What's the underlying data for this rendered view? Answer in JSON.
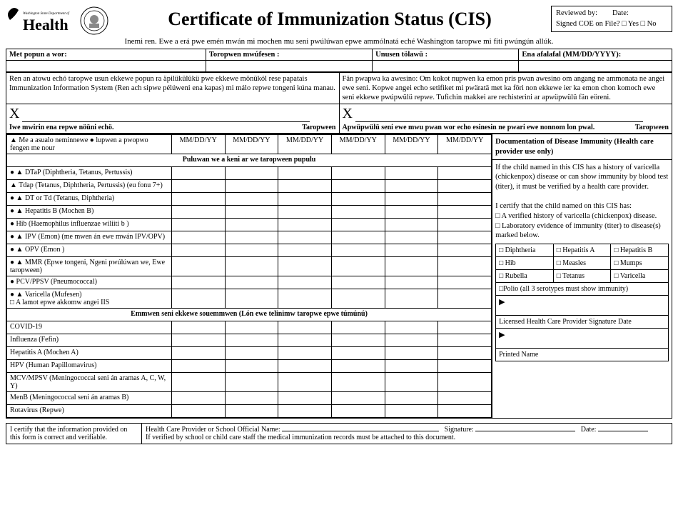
{
  "header": {
    "dept": "Washington State Department of",
    "health": "Health",
    "title": "Certificate of Immunization Status (CIS)",
    "review_l1a": "Reviewed by:",
    "review_l1b": "Date:",
    "review_l2": "Signed COE on File? □ Yes □ No",
    "sub": "Inemi ren. Ewe a erá pwe emén mwán mi mochen mu seni pwúlúwan epwe ammólnatá eché Washington taropwe mi fiti pwúngún allúk."
  },
  "info_headers": {
    "c1": "Met popun a wor:",
    "c2": "Toropwen mwúfesen :",
    "c3": "Unusen tölawü :",
    "c4": "Ena afalafal (MM/DD/YYYY):"
  },
  "para_left": "Ren an atowu echó taropwe usun ekkewe popun ra äpilükülükü pwe ekkewe mönükól rese papatais Immunization Information System (Ren ach sipwe pélúweni ena kapas) mi málo repwe tongeni kúna manau.",
  "para_right": "Fän pwapwa ka awesino: Om kokot nupwen ka emon pris pwan awesino om angang ne ammonata ne angei ewe seni. Kopwe angei echo setifiket mi pwäratä met ka föri non ekkewe ier ka emon chon komoch ewe seni ekkewe pwúpwülü repwe. Tufichin makkei are rechisterini ar apwüpwülü fän eöreni.",
  "sig": {
    "left_cap_a": "Iwe mwirin ena repwe nöüni echö.",
    "left_cap_b": "Taropween",
    "right_cap_a": "Apwüpwülü seni ewe mwu pwan wor echo esinesin ne pwari ewe nonnom lon pwal.",
    "right_cap_b": "Taropween"
  },
  "legend": "▲ Me a asualo neminnewe   ● lupwen a pwopwo fengen me nour",
  "date_hdr": "MM/DD/YY",
  "sect1": "Puluwan we a keni ar we taropween pupulu",
  "vaccines1": [
    "● ▲ DTaP (Diphtheria, Tetanus, Pertussis)",
    "▲ Tdap (Tetanus, Diphtheria, Pertussis) (eu fonu 7+)",
    "● ▲ DT or Td (Tetanus, Diphtheria)",
    "● ▲ Hepatitis B (Mochen B)",
    "●   Hib (Haemophilus influenzae wiliiti b )",
    "● ▲ IPV (Emon) (me mwen án ewe mwán IPV/OPV)",
    "● ▲ OPV (Emon )",
    "● ▲ MMR (Epwe tongeni, Ngeni pwúlúwan we, Ewe taropween)",
    "●   PCV/PPSV (Pneumococcal)",
    "● ▲ Varicella (Mufesen)\n      □  A lamot epwe akkomw angei IIS"
  ],
  "sect2": "Emmwen seni ekkewe souemmwen (Lón ewe telinimw taropwe epwe túmúnú)",
  "vaccines2": [
    "COVID-19",
    "Influenza (Fefin)",
    "Hepatitis A (Mochen A)",
    "HPV (Human Papillomavirus)",
    "MCV/MPSV (Meningococcal seni án aramas A, C, W, Y)",
    "MenB (Meningococcal seni án aramas B)",
    "Rotavirus (Repwe)"
  ],
  "doc": {
    "title": "Documentation of Disease Immunity (Health care provider use only)",
    "p1": "If the child named in this CIS has a history of varicella (chickenpox) disease or can show immunity by blood test (titer), it must be verified by a health care provider.",
    "p2": "I certify that the child named on this CIS has:",
    "chk1": "□ A verified history of varicella (chickenpox) disease.",
    "chk2": "□ Laboratory evidence of immunity (titer) to disease(s) marked below.",
    "diseases": [
      [
        "□ Diphtheria",
        "□ Hepatitis A",
        "□ Hepatitis B"
      ],
      [
        "□ Hib",
        "□ Measles",
        "□ Mumps"
      ],
      [
        "□ Rubella",
        "□ Tetanus",
        "□ Varicella"
      ]
    ],
    "polio": "□Polio (all 3 serotypes must show immunity)",
    "sig_label": "Licensed Health Care Provider Signature  Date",
    "printed": "Printed Name"
  },
  "footer": {
    "cert": "I certify that the information provided on this form is correct and verifiable.",
    "hcp": "Health Care Provider or School Official Name:",
    "sig": "Signature:",
    "date": "Date:",
    "note": "If verified by school or child care staff the medical immunization records must be attached to this document."
  }
}
